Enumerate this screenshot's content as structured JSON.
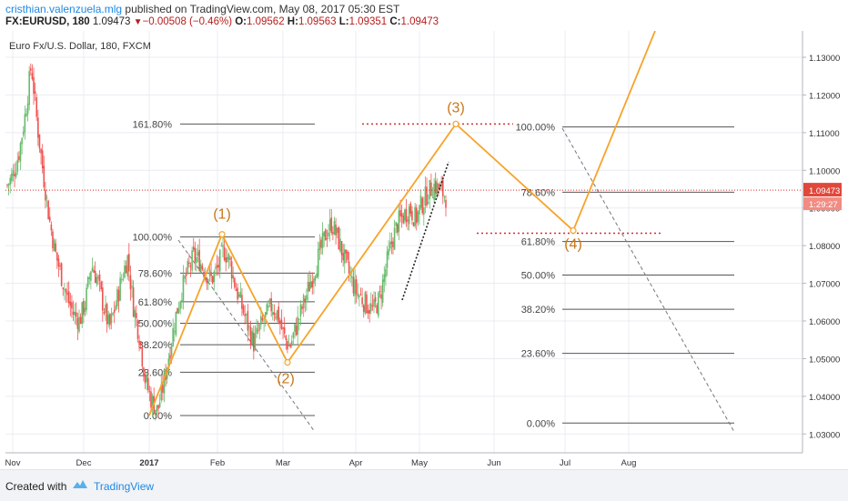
{
  "header": {
    "author": "cristhian.valenzuela.mlg",
    "published": "published on TradingView.com, May 08, 2017 05:30 EST",
    "symbol": "FX:EURUSD, 180",
    "price": "1.09473",
    "change": "−0.00508 (−0.46%)",
    "o_label": "O:",
    "o_value": "1.09562",
    "h_label": "H:",
    "h_value": "1.09563",
    "l_label": "L:",
    "l_value": "1.09351",
    "c_label": "C:",
    "c_value": "1.09473"
  },
  "footer": {
    "created_with": "Created with",
    "brand": "TradingView"
  },
  "colors": {
    "wave": "#f7a32a",
    "up": "#66bb6a",
    "down": "#ef5350",
    "accent_red": "#d32f2f",
    "fib": "#555555",
    "grid": "#e9ecf1",
    "label_orange": "#c8781a"
  },
  "chart_data": {
    "type": "candlestick",
    "title": "Euro Fx/U.S. Dollar, 180, FXCM",
    "xlabel": "",
    "ylabel": "",
    "ylim": [
      1.025,
      1.137
    ],
    "y_ticks": [
      "1.03000",
      "1.04000",
      "1.05000",
      "1.06000",
      "1.07000",
      "1.08000",
      "1.09000",
      "1.10000",
      "1.11000",
      "1.12000",
      "1.13000"
    ],
    "x_ticks": [
      "Nov",
      "Dec",
      "2017",
      "Feb",
      "Mar",
      "Apr",
      "May",
      "Jun",
      "Jul",
      "Aug"
    ],
    "current_price": {
      "value": 1.09473,
      "label": "1.09473",
      "countdown": "1:29:27"
    },
    "candles_shape": [
      1.096,
      1.099,
      1.105,
      1.115,
      1.128,
      1.112,
      1.099,
      1.087,
      1.078,
      1.072,
      1.066,
      1.062,
      1.06,
      1.065,
      1.075,
      1.071,
      1.064,
      1.058,
      1.064,
      1.071,
      1.077,
      1.064,
      1.056,
      1.044,
      1.039,
      1.036,
      1.043,
      1.052,
      1.061,
      1.068,
      1.073,
      1.077,
      1.076,
      1.073,
      1.071,
      1.074,
      1.079,
      1.076,
      1.069,
      1.064,
      1.059,
      1.054,
      1.058,
      1.061,
      1.064,
      1.062,
      1.056,
      1.053,
      1.058,
      1.063,
      1.068,
      1.073,
      1.078,
      1.083,
      1.086,
      1.082,
      1.077,
      1.072,
      1.068,
      1.066,
      1.064,
      1.063,
      1.066,
      1.074,
      1.081,
      1.086,
      1.088,
      1.09,
      1.087,
      1.091,
      1.094,
      1.096,
      1.095,
      1.093
    ],
    "fib_left": {
      "levels": [
        {
          "label": "161.80%",
          "price": 1.1123
        },
        {
          "label": "100.00%",
          "price": 1.0823
        },
        {
          "label": "78.60%",
          "price": 1.0727
        },
        {
          "label": "61.80%",
          "price": 1.0651
        },
        {
          "label": "50.00%",
          "price": 1.0594
        },
        {
          "label": "38.20%",
          "price": 1.0537
        },
        {
          "label": "23.60%",
          "price": 1.0464
        },
        {
          "label": "0.00%",
          "price": 1.0349
        }
      ]
    },
    "fib_right": {
      "levels": [
        {
          "label": "100.00%",
          "price": 1.1115
        },
        {
          "label": "78.60%",
          "price": 1.0942
        },
        {
          "label": "61.80%",
          "price": 1.0811
        },
        {
          "label": "50.00%",
          "price": 1.0722
        },
        {
          "label": "38.20%",
          "price": 1.0631
        },
        {
          "label": "23.60%",
          "price": 1.0514
        },
        {
          "label": "0.00%",
          "price": 1.0329
        }
      ]
    },
    "waves": [
      {
        "label": "(1)",
        "price": 1.083
      },
      {
        "label": "(2)",
        "price": 1.049
      },
      {
        "label": "(3)",
        "price": 1.1123
      },
      {
        "label": "(4)",
        "price": 1.084
      }
    ],
    "wave_path_prices": [
      1.0349,
      1.083,
      1.049,
      1.1123,
      1.084,
      1.137
    ],
    "resistance_lines": [
      1.1123,
      1.0833
    ]
  }
}
